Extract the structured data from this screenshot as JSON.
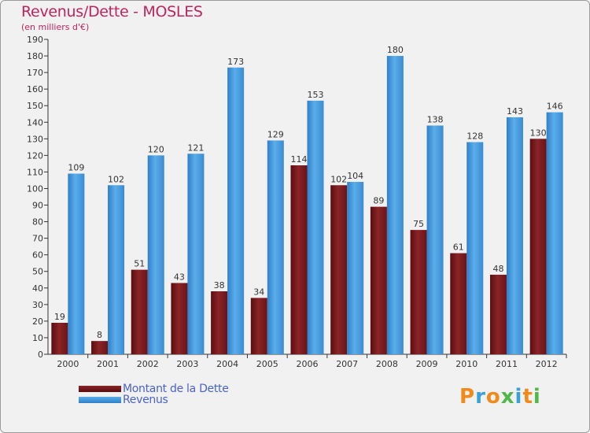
{
  "chart_data": {
    "type": "bar",
    "title": "Revenus/Dette - MOSLES",
    "subtitle": "(en milliers d'€)",
    "categories": [
      "2000",
      "2001",
      "2002",
      "2003",
      "2004",
      "2005",
      "2006",
      "2007",
      "2008",
      "2009",
      "2010",
      "2011",
      "2012"
    ],
    "series": [
      {
        "name": "Montant de la Dette",
        "color": "#7a1a1d",
        "values": [
          19,
          8,
          51,
          43,
          38,
          34,
          114,
          102,
          89,
          75,
          61,
          48,
          130
        ]
      },
      {
        "name": "Revenus",
        "color": "#3d8fd6",
        "values": [
          109,
          102,
          120,
          121,
          173,
          129,
          153,
          104,
          180,
          138,
          128,
          143,
          146
        ]
      }
    ],
    "ylim": [
      0,
      190
    ],
    "ytick_step": 10,
    "grid": false,
    "legend_position": "bottom-left"
  },
  "brand": {
    "text": "Proxiti",
    "colors": [
      "#f08a1c",
      "#3aa0d8",
      "#f08a1c",
      "#4fb848",
      "#3aa0d8",
      "#f08a1c",
      "#4fb848"
    ]
  }
}
